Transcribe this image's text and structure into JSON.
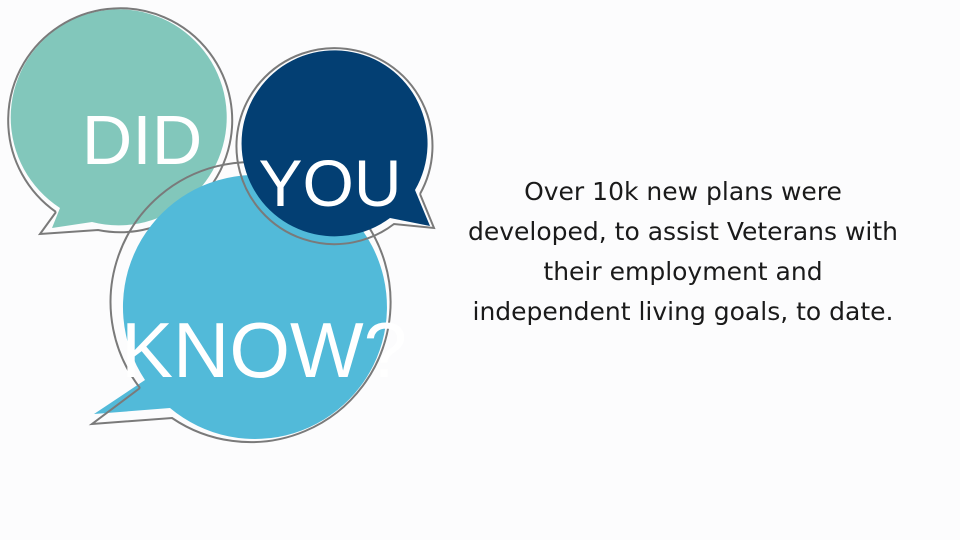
{
  "bubbles": {
    "did": {
      "text": "DID",
      "color": "#82c7bb"
    },
    "you": {
      "text": "YOU",
      "color": "#033f73"
    },
    "know": {
      "text": "KNOW?",
      "color": "#52bad9"
    },
    "outline_color": "#7a7a7a"
  },
  "fact": {
    "lines": [
      "Over 10k new plans were",
      "developed, to assist Veterans with",
      "their employment and",
      "independent living goals, to date."
    ]
  }
}
